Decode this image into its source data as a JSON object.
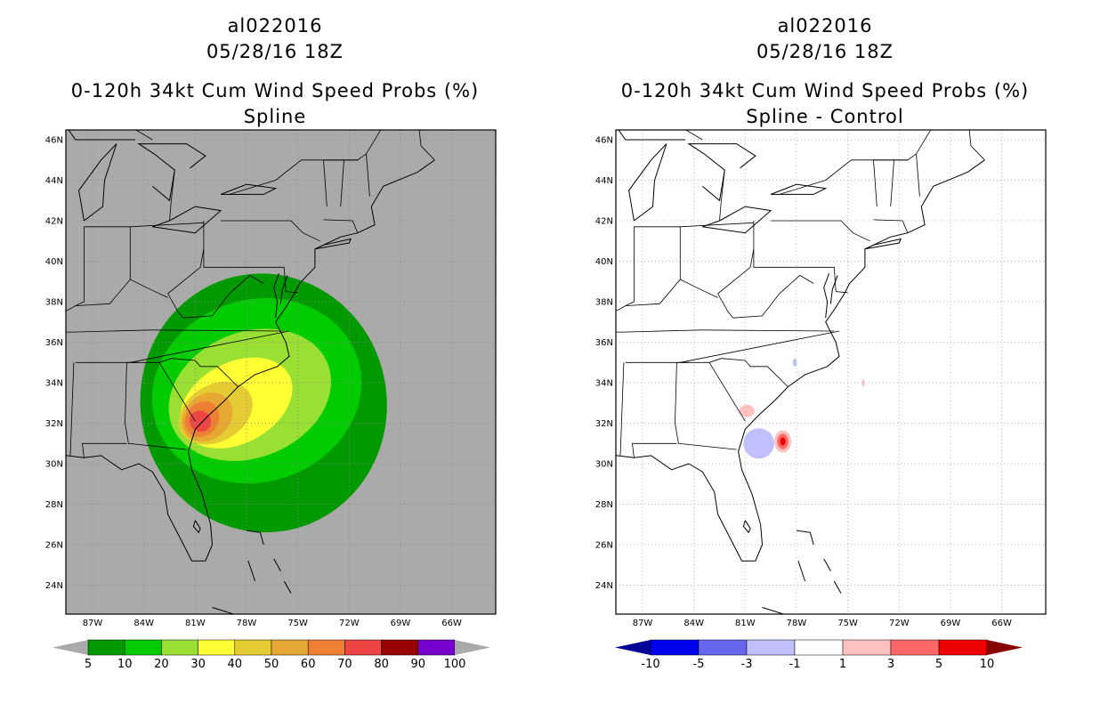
{
  "left_panel": {
    "storm_id": "al022016",
    "datetime": "05/28/16 18Z",
    "product": "0-120h 34kt Cum Wind Speed Probs (%)",
    "subtitle": "Spline",
    "background_color": "#aaaaaa",
    "colorbar": {
      "labels": [
        "5",
        "10",
        "20",
        "30",
        "40",
        "50",
        "60",
        "70",
        "80",
        "90",
        "100"
      ],
      "colors": [
        "#009900",
        "#00cc00",
        "#99e033",
        "#ffff33",
        "#e6cc33",
        "#e6a833",
        "#ee8033",
        "#ee4444",
        "#990000",
        "#7700cc"
      ],
      "under_color": "#aaaaaa",
      "over_color": "#aaaaaa"
    }
  },
  "right_panel": {
    "storm_id": "al022016",
    "datetime": "05/28/16 18Z",
    "product": "0-120h 34kt Cum Wind Speed Probs (%)",
    "subtitle": "Spline - Control",
    "background_color": "#ffffff",
    "colorbar": {
      "labels": [
        "-10",
        "-5",
        "-3",
        "-1",
        "1",
        "3",
        "5",
        "10"
      ],
      "colors": [
        "#0000ee",
        "#6666ee",
        "#c0c0ff",
        "#ffffff",
        "#ffc0c0",
        "#ff6666",
        "#ee0000"
      ],
      "under_color": "#000099",
      "over_color": "#880000"
    }
  },
  "axes": {
    "lat_labels": [
      "46N",
      "44N",
      "42N",
      "40N",
      "38N",
      "36N",
      "34N",
      "32N",
      "30N",
      "28N",
      "26N",
      "24N"
    ],
    "lon_labels": [
      "87W",
      "84W",
      "81W",
      "78W",
      "75W",
      "72W",
      "69W",
      "66W"
    ]
  }
}
